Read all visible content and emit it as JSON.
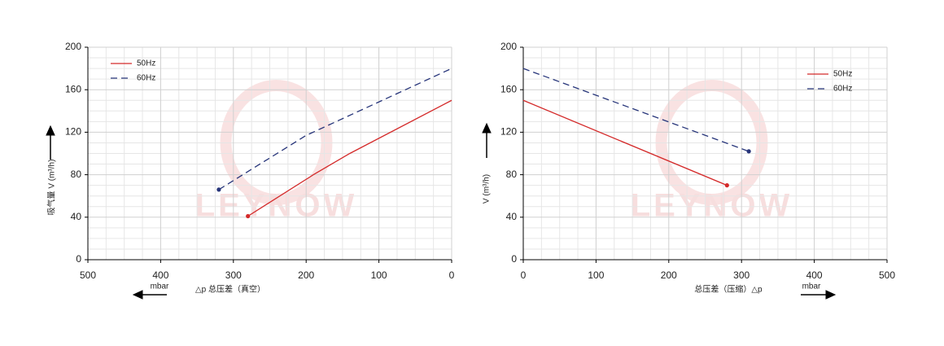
{
  "chart_data": [
    {
      "type": "line",
      "watermark": "LEYNOW",
      "ylabel": "吸气量 V (m³/h)",
      "xlabel": "△p 总压差（真空）",
      "xunit": "mbar",
      "xlim": [
        500,
        0
      ],
      "xticks": [
        500,
        400,
        300,
        200,
        100,
        0
      ],
      "ylim": [
        0,
        200
      ],
      "yticks": [
        0,
        40,
        80,
        120,
        160,
        200
      ],
      "grid": true,
      "legend": "upper left",
      "series": [
        {
          "name": "50Hz",
          "color": "#d42a2a",
          "style": "solid",
          "x": [
            280,
            190,
            140,
            0
          ],
          "values": [
            41,
            80,
            100,
            150
          ]
        },
        {
          "name": "60Hz",
          "color": "#27357a",
          "style": "dashed",
          "x": [
            320,
            200,
            0
          ],
          "values": [
            66,
            117,
            180
          ]
        }
      ]
    },
    {
      "type": "line",
      "watermark": "LEYNOW",
      "ylabel": "V (m³/h)",
      "xlabel": "总压差（压缩）△p",
      "xunit": "mbar",
      "xlim": [
        0,
        500
      ],
      "xticks": [
        0,
        100,
        200,
        300,
        400,
        500
      ],
      "ylim": [
        0,
        200
      ],
      "yticks": [
        0,
        40,
        80,
        120,
        160,
        200
      ],
      "grid": true,
      "legend": "upper right",
      "series": [
        {
          "name": "50Hz",
          "color": "#d42a2a",
          "style": "solid",
          "x": [
            0,
            280
          ],
          "values": [
            150,
            70
          ]
        },
        {
          "name": "60Hz",
          "color": "#27357a",
          "style": "dashed",
          "x": [
            0,
            310
          ],
          "values": [
            180,
            102
          ]
        }
      ]
    }
  ]
}
